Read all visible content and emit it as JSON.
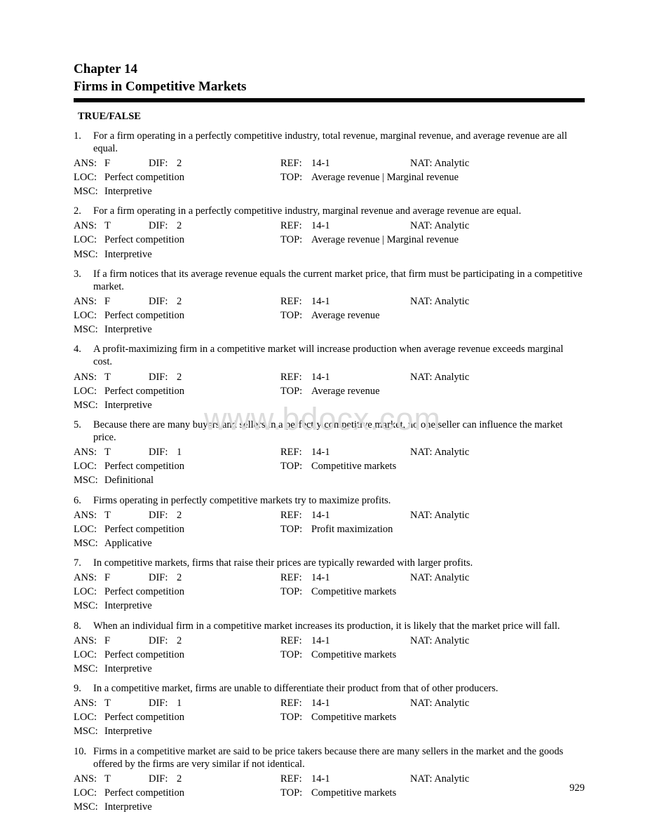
{
  "chapter_line1": "Chapter 14",
  "chapter_line2": "Firms in Competitive Markets",
  "section": "TRUE/FALSE",
  "watermark": "www.bdocx.com",
  "page_number": "929",
  "labels": {
    "ans": "ANS:",
    "dif": "DIF:",
    "ref": "REF:",
    "nat_prefix": "NAT: ",
    "loc": "LOC:",
    "top": "TOP:",
    "msc": "MSC:"
  },
  "questions": [
    {
      "num": "1.",
      "text": "For a firm operating in a perfectly competitive industry, total revenue, marginal revenue, and average revenue are all equal.",
      "ans": "F",
      "dif": "2",
      "ref": "14-1",
      "nat": "Analytic",
      "loc": "Perfect competition",
      "top": "Average revenue   | Marginal revenue",
      "msc": "Interpretive"
    },
    {
      "num": "2.",
      "text": "For a firm operating in a perfectly competitive industry, marginal revenue and average revenue are equal.",
      "ans": "T",
      "dif": "2",
      "ref": "14-1",
      "nat": "Analytic",
      "loc": "Perfect competition",
      "top": "Average revenue   | Marginal revenue",
      "msc": "Interpretive"
    },
    {
      "num": "3.",
      "text": "If a firm notices that its average revenue equals the current market price, that firm must be participating in a competitive market.",
      "ans": "F",
      "dif": "2",
      "ref": "14-1",
      "nat": "Analytic",
      "loc": "Perfect competition",
      "top": "Average revenue",
      "msc": "Interpretive"
    },
    {
      "num": "4.",
      "text": "A profit-maximizing firm in a competitive market will increase production when average revenue exceeds marginal cost.",
      "ans": "T",
      "dif": "2",
      "ref": "14-1",
      "nat": "Analytic",
      "loc": "Perfect competition",
      "top": "Average revenue",
      "msc": "Interpretive"
    },
    {
      "num": "5.",
      "text": "Because there are many buyers and sellers in a perfectly competitive market, no one seller can influence the market price.",
      "ans": "T",
      "dif": "1",
      "ref": "14-1",
      "nat": "Analytic",
      "loc": "Perfect competition",
      "top": "Competitive markets",
      "msc": "Definitional"
    },
    {
      "num": "6.",
      "text": "Firms operating in perfectly competitive markets try to maximize profits.",
      "ans": "T",
      "dif": "2",
      "ref": "14-1",
      "nat": "Analytic",
      "loc": "Perfect competition",
      "top": "Profit maximization",
      "msc": "Applicative"
    },
    {
      "num": "7.",
      "text": "In competitive markets, firms that raise their prices are typically rewarded with larger profits.",
      "ans": "F",
      "dif": "2",
      "ref": "14-1",
      "nat": "Analytic",
      "loc": "Perfect competition",
      "top": "Competitive markets",
      "msc": "Interpretive"
    },
    {
      "num": "8.",
      "text": "When an individual firm in a competitive market increases its production, it is likely that the market price will fall.",
      "ans": "F",
      "dif": "2",
      "ref": "14-1",
      "nat": "Analytic",
      "loc": "Perfect competition",
      "top": "Competitive markets",
      "msc": "Interpretive"
    },
    {
      "num": "9.",
      "text": "In a competitive market, firms are unable to differentiate their product from that of other producers.",
      "ans": "T",
      "dif": "1",
      "ref": "14-1",
      "nat": "Analytic",
      "loc": "Perfect competition",
      "top": "Competitive markets",
      "msc": "Interpretive"
    },
    {
      "num": "10.",
      "text": "Firms in a competitive market are said to be price takers because there are many sellers in the market and the goods offered by the firms are very similar if not identical.",
      "ans": "T",
      "dif": "2",
      "ref": "14-1",
      "nat": "Analytic",
      "loc": "Perfect competition",
      "top": "Competitive markets",
      "msc": "Interpretive"
    }
  ]
}
